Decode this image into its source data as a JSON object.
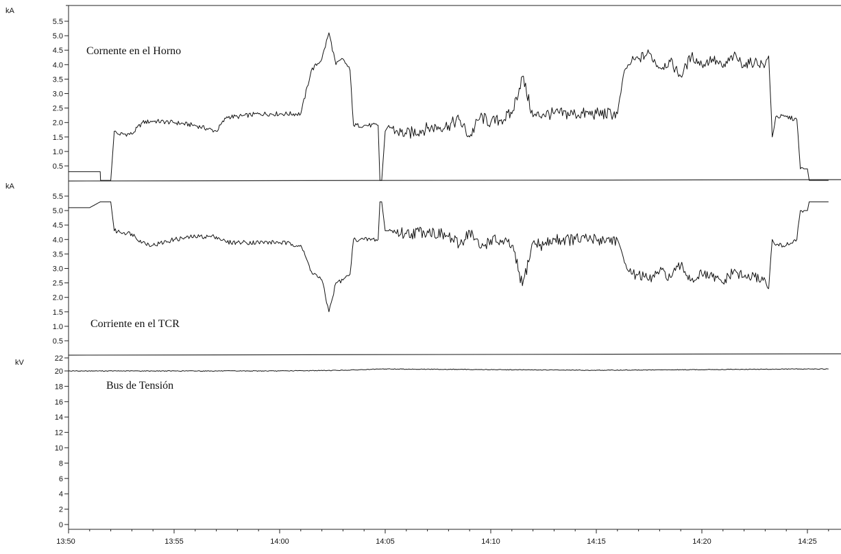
{
  "chart_data": [
    {
      "type": "line",
      "panel_title": "Cornente en el Horno",
      "unit_label": "kA",
      "y_ticks": [
        "5.5",
        "5.0",
        "4.5",
        "4.0",
        "3.5",
        "3.0",
        "2.5",
        "2.0",
        "1.5",
        "1.0",
        "0.5"
      ],
      "ylim": [
        0,
        6.0
      ],
      "grid": false,
      "series": [
        {
          "x": [
            "13:50:00",
            "13:51:30",
            "13:51:31",
            "13:52:00",
            "13:52:10",
            "13:52:20",
            "13:53:00",
            "13:53:30",
            "13:54:00",
            "13:55:00",
            "13:56:00",
            "13:57:00",
            "13:57:30",
            "13:58:00",
            "13:59:00",
            "14:00:00",
            "14:01:00",
            "14:01:30",
            "14:02:00",
            "14:02:20",
            "14:02:40",
            "14:03:00",
            "14:03:20",
            "14:03:30",
            "14:04:00",
            "14:04:40",
            "14:04:45",
            "14:04:50",
            "14:05:00",
            "14:05:10",
            "14:05:30",
            "14:06:00",
            "14:07:00",
            "14:08:00",
            "14:08:30",
            "14:09:00",
            "14:09:30",
            "14:10:00",
            "14:10:30",
            "14:11:00",
            "14:11:30",
            "14:12:00",
            "14:12:30",
            "14:13:00",
            "14:14:00",
            "14:15:00",
            "14:16:00",
            "14:16:20",
            "14:16:40",
            "14:17:00",
            "14:17:30",
            "14:18:00",
            "14:18:30",
            "14:19:00",
            "14:19:30",
            "14:20:00",
            "14:20:30",
            "14:21:00",
            "14:21:30",
            "14:22:00",
            "14:22:30",
            "14:23:00",
            "14:23:10",
            "14:23:20",
            "14:23:30",
            "14:24:00",
            "14:24:30",
            "14:24:40",
            "14:25:00",
            "14:25:05",
            "14:25:10",
            "14:26:00"
          ],
          "y": [
            0.3,
            0.3,
            0.0,
            0.0,
            1.7,
            1.6,
            1.6,
            2.0,
            2.05,
            2.0,
            1.9,
            1.7,
            2.2,
            2.2,
            2.3,
            2.3,
            2.3,
            3.8,
            4.2,
            5.1,
            4.0,
            4.2,
            3.8,
            1.9,
            1.9,
            1.9,
            0.0,
            0.0,
            1.7,
            1.9,
            1.7,
            1.6,
            1.8,
            1.9,
            2.1,
            1.5,
            2.2,
            2.0,
            2.1,
            2.3,
            3.6,
            2.2,
            2.3,
            2.3,
            2.3,
            2.3,
            2.3,
            3.8,
            4.1,
            4.2,
            4.4,
            3.9,
            4.1,
            3.6,
            4.3,
            4.0,
            4.2,
            3.9,
            4.3,
            4.0,
            4.1,
            4.0,
            4.3,
            1.5,
            2.2,
            2.2,
            2.1,
            0.4,
            0.4,
            0.0,
            0.0,
            0.0
          ]
        }
      ]
    },
    {
      "type": "line",
      "panel_title": "Corriente en el TCR",
      "unit_label": "kA",
      "y_ticks": [
        "5.5",
        "5.0",
        "4.5",
        "4.0",
        "3.5",
        "3.0",
        "2.5",
        "2.0",
        "1.5",
        "1.0",
        "0.5"
      ],
      "ylim": [
        0,
        6.0
      ],
      "grid": false,
      "series": [
        {
          "x": [
            "13:50:00",
            "13:51:00",
            "13:51:30",
            "13:52:00",
            "13:52:10",
            "13:53:00",
            "13:53:30",
            "13:54:00",
            "13:55:00",
            "13:56:00",
            "13:57:00",
            "13:57:30",
            "13:58:00",
            "13:59:00",
            "14:00:00",
            "14:01:00",
            "14:01:30",
            "14:02:00",
            "14:02:20",
            "14:02:40",
            "14:03:00",
            "14:03:20",
            "14:03:30",
            "14:04:00",
            "14:04:40",
            "14:04:45",
            "14:04:50",
            "14:05:00",
            "14:05:10",
            "14:06:00",
            "14:07:00",
            "14:08:00",
            "14:08:30",
            "14:09:00",
            "14:09:30",
            "14:10:00",
            "14:10:30",
            "14:11:00",
            "14:11:30",
            "14:12:00",
            "14:12:30",
            "14:13:00",
            "14:14:00",
            "14:15:00",
            "14:16:00",
            "14:16:20",
            "14:16:40",
            "14:17:00",
            "14:17:30",
            "14:18:00",
            "14:18:30",
            "14:19:00",
            "14:19:30",
            "14:20:00",
            "14:20:30",
            "14:21:00",
            "14:21:30",
            "14:22:00",
            "14:22:30",
            "14:23:00",
            "14:23:10",
            "14:23:20",
            "14:23:30",
            "14:24:00",
            "14:24:30",
            "14:24:40",
            "14:25:00",
            "14:25:05",
            "14:25:10",
            "14:26:00"
          ],
          "y": [
            5.1,
            5.1,
            5.3,
            5.3,
            4.3,
            4.2,
            3.9,
            3.8,
            4.0,
            4.1,
            4.1,
            3.9,
            3.9,
            3.9,
            3.9,
            3.8,
            2.9,
            2.6,
            1.5,
            2.5,
            2.6,
            2.8,
            4.0,
            4.0,
            4.0,
            5.3,
            5.3,
            4.3,
            4.3,
            4.2,
            4.3,
            4.1,
            3.8,
            4.3,
            3.7,
            4.0,
            3.9,
            3.8,
            2.4,
            3.9,
            3.8,
            4.0,
            4.0,
            4.0,
            4.0,
            3.2,
            2.8,
            2.8,
            2.6,
            2.9,
            2.7,
            3.1,
            2.6,
            2.8,
            2.7,
            2.5,
            2.9,
            2.7,
            2.7,
            2.6,
            2.3,
            4.0,
            3.8,
            3.8,
            4.0,
            5.0,
            5.0,
            5.3,
            5.3,
            5.3
          ]
        }
      ]
    },
    {
      "type": "line",
      "panel_title": "Bus de Tensión",
      "unit_label": "kV",
      "y_ticks": [
        "22",
        "20",
        "18",
        "16",
        "14",
        "12",
        "10",
        "8",
        "6",
        "4",
        "2",
        "0"
      ],
      "ylim": [
        0,
        22
      ],
      "grid": false,
      "series": [
        {
          "x": [
            "13:50:00",
            "13:55:00",
            "14:00:00",
            "14:03:00",
            "14:05:00",
            "14:10:00",
            "14:15:00",
            "14:20:00",
            "14:25:00",
            "14:26:00"
          ],
          "y": [
            20.0,
            20.0,
            20.0,
            20.1,
            20.3,
            20.2,
            20.1,
            20.2,
            20.3,
            20.3
          ]
        }
      ]
    }
  ],
  "x_axis": {
    "tick_labels": [
      "13:50",
      "13:55",
      "14:00",
      "14:05",
      "14:10",
      "14:15",
      "14:20",
      "14:25"
    ]
  }
}
